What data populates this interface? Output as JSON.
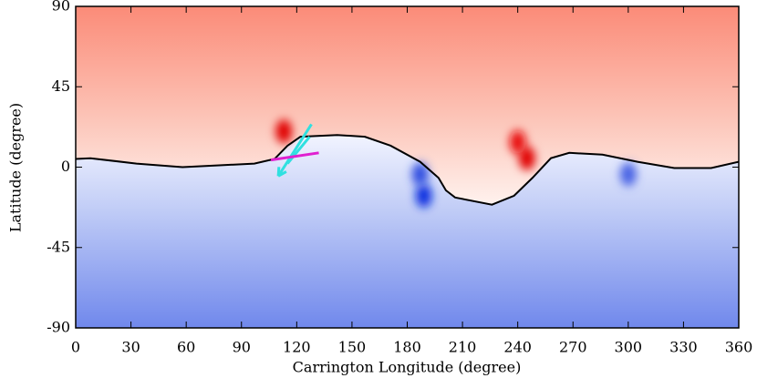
{
  "chart_data": {
    "type": "map",
    "xlabel": "Carrington Longitude (degree)",
    "ylabel": "Latitude (degree)",
    "xlim": [
      0,
      360
    ],
    "ylim": [
      -90,
      90
    ],
    "xticks": [
      0,
      30,
      60,
      90,
      120,
      150,
      180,
      210,
      240,
      270,
      300,
      330,
      360
    ],
    "yticks": [
      -90,
      -45,
      0,
      45,
      90
    ],
    "top_color": "#fb8b78",
    "bottom_color": "#7088ec",
    "neutral_line": {
      "color": "#000000",
      "x": [
        0,
        8,
        33,
        58,
        78,
        97,
        108,
        115,
        122,
        142,
        157,
        171,
        187,
        197,
        201,
        206,
        226,
        238,
        248,
        258,
        268,
        286,
        305,
        325,
        345,
        360
      ],
      "y": [
        4.6,
        5,
        2,
        0,
        1,
        2,
        4.6,
        12,
        17,
        18,
        17,
        12,
        3,
        -6,
        -13,
        -17,
        -21,
        -16,
        -6,
        5,
        8,
        7,
        3,
        -0.5,
        -0.5,
        3
      ]
    },
    "spots": [
      {
        "x": 113,
        "y": 20,
        "color": "#e00000"
      },
      {
        "x": 245,
        "y": 5,
        "color": "#e00000"
      },
      {
        "x": 240,
        "y": 14,
        "color": "#e81010"
      },
      {
        "x": 189,
        "y": -16,
        "color": "#1030e0"
      },
      {
        "x": 187,
        "y": -4,
        "color": "#3050e0"
      },
      {
        "x": 300,
        "y": -4,
        "color": "#4a64e4"
      }
    ],
    "arrows": [
      {
        "color": "#30e0e0",
        "x": [
          128,
          110
        ],
        "y": [
          24,
          -5
        ]
      },
      {
        "color": "#30e0e0",
        "x": [
          127,
          115
        ],
        "y": [
          17,
          2
        ]
      },
      {
        "color": "#e020d0",
        "x": [
          106,
          132
        ],
        "y": [
          4,
          8
        ]
      }
    ]
  }
}
